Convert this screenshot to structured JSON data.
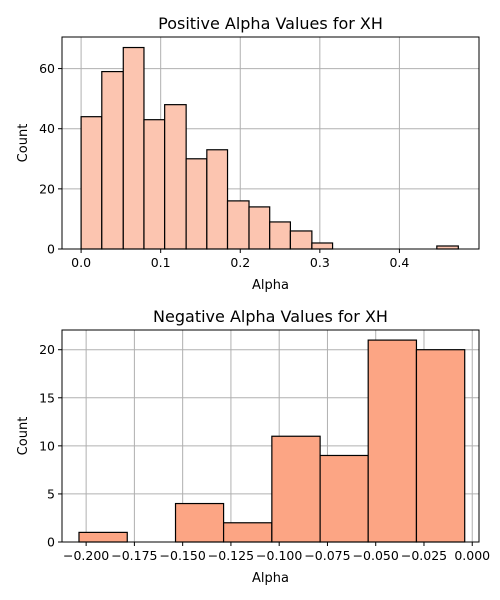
{
  "chart_data": [
    {
      "type": "bar",
      "title": "Positive Alpha Values for XH",
      "xlabel": "Alpha",
      "ylabel": "Count",
      "color": "#fcc5b0",
      "xlim": [
        -0.024,
        0.5
      ],
      "ylim": [
        0,
        70.5
      ],
      "xticks": [
        0.0,
        0.1,
        0.2,
        0.3,
        0.4
      ],
      "xtick_labels": [
        "0.0",
        "0.1",
        "0.2",
        "0.3",
        "0.4"
      ],
      "yticks": [
        0,
        20,
        40,
        60
      ],
      "ytick_labels": [
        "0",
        "20",
        "40",
        "60"
      ],
      "grid": true,
      "bins": [
        {
          "start": 0.0,
          "end": 0.026,
          "count": 44
        },
        {
          "start": 0.026,
          "end": 0.053,
          "count": 59
        },
        {
          "start": 0.053,
          "end": 0.079,
          "count": 67
        },
        {
          "start": 0.079,
          "end": 0.105,
          "count": 43
        },
        {
          "start": 0.105,
          "end": 0.132,
          "count": 48
        },
        {
          "start": 0.132,
          "end": 0.158,
          "count": 30
        },
        {
          "start": 0.158,
          "end": 0.184,
          "count": 33
        },
        {
          "start": 0.184,
          "end": 0.211,
          "count": 16
        },
        {
          "start": 0.211,
          "end": 0.237,
          "count": 14
        },
        {
          "start": 0.237,
          "end": 0.263,
          "count": 9
        },
        {
          "start": 0.263,
          "end": 0.29,
          "count": 6
        },
        {
          "start": 0.29,
          "end": 0.316,
          "count": 2
        },
        {
          "start": 0.316,
          "end": 0.342,
          "count": 0
        },
        {
          "start": 0.342,
          "end": 0.368,
          "count": 0
        },
        {
          "start": 0.368,
          "end": 0.395,
          "count": 0
        },
        {
          "start": 0.395,
          "end": 0.421,
          "count": 0
        },
        {
          "start": 0.421,
          "end": 0.447,
          "count": 0
        },
        {
          "start": 0.447,
          "end": 0.474,
          "count": 1
        }
      ]
    },
    {
      "type": "bar",
      "title": "Negative Alpha Values for XH",
      "xlabel": "Alpha",
      "ylabel": "Count",
      "color": "#fca584",
      "xlim": [
        -0.2125,
        0.0035
      ],
      "ylim": [
        0,
        22.05
      ],
      "xticks": [
        -0.2,
        -0.175,
        -0.15,
        -0.125,
        -0.1,
        -0.075,
        -0.05,
        -0.025,
        0.0
      ],
      "xtick_labels": [
        "−0.200",
        "−0.175",
        "−0.150",
        "−0.125",
        "−0.100",
        "−0.075",
        "−0.050",
        "−0.025",
        "0.000"
      ],
      "yticks": [
        0,
        5,
        10,
        15,
        20
      ],
      "ytick_labels": [
        "0",
        "5",
        "10",
        "15",
        "20"
      ],
      "grid": true,
      "bins": [
        {
          "start": -0.2037,
          "end": -0.1787,
          "count": 1
        },
        {
          "start": -0.1787,
          "end": -0.1537,
          "count": 0
        },
        {
          "start": -0.1537,
          "end": -0.1288,
          "count": 4
        },
        {
          "start": -0.1288,
          "end": -0.1038,
          "count": 2
        },
        {
          "start": -0.1038,
          "end": -0.0788,
          "count": 11
        },
        {
          "start": -0.0788,
          "end": -0.0539,
          "count": 9
        },
        {
          "start": -0.0539,
          "end": -0.0289,
          "count": 21
        },
        {
          "start": -0.0289,
          "end": -0.0039,
          "count": 20
        }
      ]
    }
  ]
}
